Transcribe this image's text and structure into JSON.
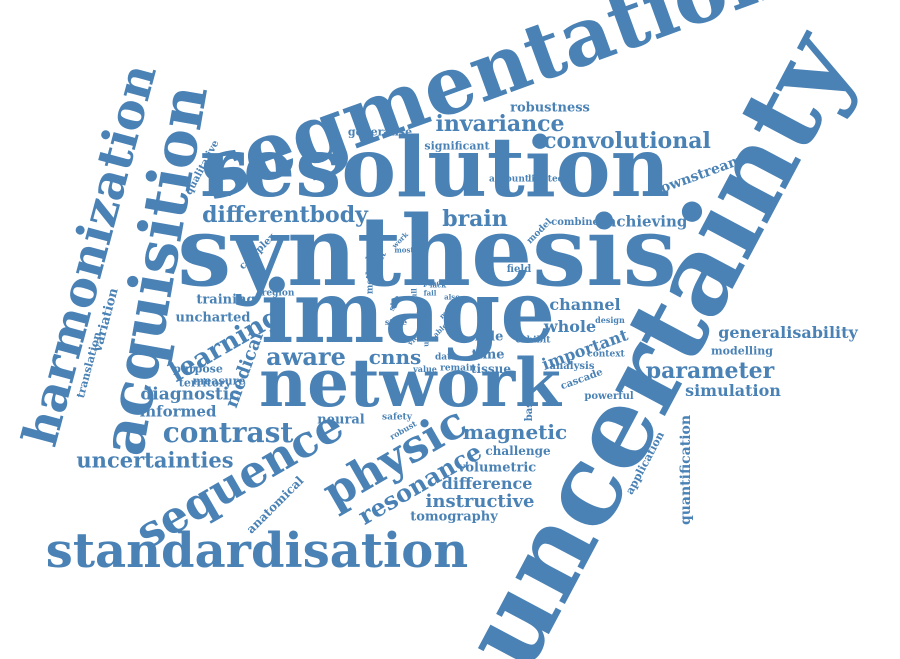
{
  "accent_color": "#4a82b5",
  "background_color": "#ffffff",
  "words": {
    "uncertainty": "uncertainty",
    "synthesis": "synthesis",
    "segmentation": "segmentation",
    "resolution": "resolution",
    "image": "image",
    "network": "network",
    "acquisition": "acquisition",
    "harmonization": "harmonization",
    "standardisation": "standardisation",
    "sequence": "sequence",
    "physic": "physic",
    "contrast": "contrast",
    "learning": "learning",
    "invariance": "invariance",
    "convolutional": "convolutional",
    "differentbody": "differentbody",
    "brain": "brain",
    "uncertainties": "uncertainties",
    "magnetic": "magnetic",
    "resonance": "resonance",
    "instructive": "instructive",
    "parameter": "parameter",
    "simulation": "simulation",
    "generalisability": "generalisability",
    "aware": "aware",
    "cnns": "cnns",
    "diagnostic": "diagnostic",
    "informed": "informed",
    "medical": "medical",
    "channel": "channel",
    "whole": "whole",
    "important": "important",
    "achieving": "achieving",
    "downstream": "downstream",
    "robustness": "robustness",
    "significant": "significant",
    "generalise": "generalise",
    "training": "training",
    "uncharted": "uncharted",
    "territory": "territory",
    "variation": "variation",
    "translation": "translation",
    "qualitative": "qualitative",
    "complex": "complex",
    "region": "region",
    "purpose": "purpose",
    "measure": "measure",
    "neural": "neural",
    "safety": "safety",
    "robust": "robust",
    "anatomical": "anatomical",
    "challenge": "challenge",
    "volumetric": "volumetric",
    "difference": "difference",
    "tomography": "tomography",
    "powerful": "powerful",
    "cascade": "cascade",
    "analysis": "analysis",
    "context": "context",
    "modelling": "modelling",
    "design": "design",
    "exhibit": "exhibit",
    "role": "role",
    "time": "time",
    "tissue": "tissue",
    "data": "data",
    "value": "value",
    "remain": "remain",
    "based": "based",
    "application": "application",
    "quantification": "quantification",
    "account": "account",
    "limited": "limited",
    "combine": "combine",
    "model": "model",
    "field": "field",
    "method": "method",
    "result": "result",
    "spatial": "spatial",
    "state": "state",
    "site": "site",
    "work": "work",
    "most": "most",
    "lack": "lack",
    "fail": "fail",
    "prac": "prac",
    "many": "many",
    "able": "able",
    "rob": "rob",
    "full": "full",
    "also": "also",
    "use": "use",
    "view": "view"
  }
}
